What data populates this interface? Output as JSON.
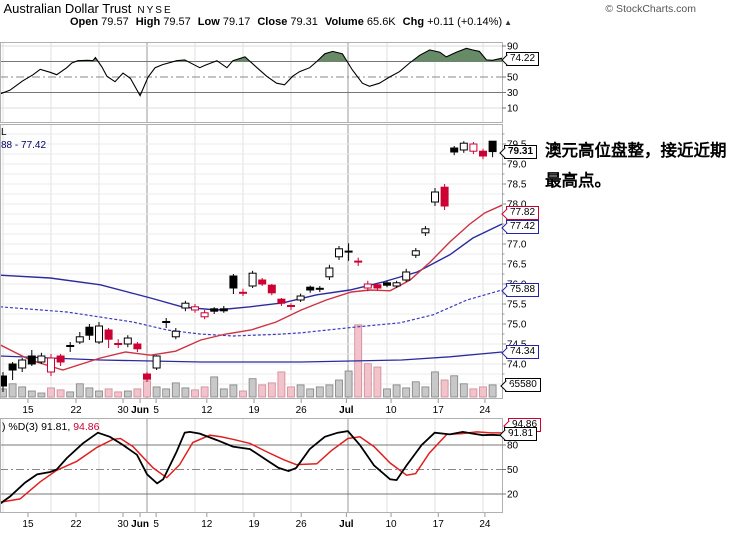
{
  "header": {
    "title": ": Australian Dollar Trust",
    "exchange": "NYSE",
    "copyright": "© StockCharts.com",
    "quote": [
      {
        "label": "Open",
        "value": "79.57"
      },
      {
        "label": "High",
        "value": "79.57"
      },
      {
        "label": "Low",
        "value": "79.17"
      },
      {
        "label": "Close",
        "value": "79.31"
      },
      {
        "label": "Volume",
        "value": "65.6K"
      },
      {
        "label": "Chg",
        "value": "+0.11 (+0.14%)"
      }
    ],
    "chg_arrow": "▲"
  },
  "annotation": {
    "text": "澳元高位盘整，接近近期最高点。"
  },
  "legends": {
    "main_line1": "L",
    "main_line2": "88 - 77.42",
    "stoch_prefix": ") %D(3) 91.81,",
    "stoch_d_value": "94.86"
  },
  "label_boxes": {
    "rsi": "74.22",
    "last_price": "79.31",
    "ma_fast": "77.82",
    "ma_slow": "77.42",
    "ma_dashed": "75.88",
    "ma_long": "74.34",
    "volume": "65580",
    "stoch_k": "91.81",
    "stoch_d": "94.86"
  },
  "colors": {
    "candle_up": "#000000",
    "candle_down": "#cc0033",
    "ma_red": "#cc3344",
    "ma_blue": "#2b2ba0",
    "ma_dashed": "#3b3bc0",
    "vol_gray": "#c8c8c8",
    "vol_gray_edge": "#808080",
    "vol_pink": "#f3c3cb",
    "vol_pink_edge": "#cc8896",
    "rsi_fill_high": "#678b67",
    "rsi_fill_low": "#9b6565",
    "stoch_k": "#000000",
    "stoch_d": "#e02020"
  },
  "chart_data": {
    "type": "candlestick+indicators",
    "x_labels": [
      {
        "t": "15",
        "f": 0.0557,
        "bold": false
      },
      {
        "t": "22",
        "f": 0.1514,
        "bold": false
      },
      {
        "t": "30",
        "f": 0.245,
        "bold": false
      },
      {
        "t": "Jun",
        "f": 0.279,
        "bold": true
      },
      {
        "t": "5",
        "f": 0.311,
        "bold": false
      },
      {
        "t": "12",
        "f": 0.412,
        "bold": false
      },
      {
        "t": "19",
        "f": 0.506,
        "bold": false
      },
      {
        "t": "26",
        "f": 0.6,
        "bold": false
      },
      {
        "t": "Jul",
        "f": 0.69,
        "bold": true
      },
      {
        "t": "10",
        "f": 0.779,
        "bold": false
      },
      {
        "t": "17",
        "f": 0.873,
        "bold": false
      },
      {
        "t": "24",
        "f": 0.966,
        "bold": false
      }
    ],
    "rsi": {
      "ylabels": [
        90,
        50,
        30,
        10
      ],
      "overbought": 70,
      "oversold": 30,
      "mid": 50,
      "last": 74.22,
      "points": [
        [
          0,
          28
        ],
        [
          0.02,
          33
        ],
        [
          0.045,
          45
        ],
        [
          0.066,
          53
        ],
        [
          0.08,
          60
        ],
        [
          0.1,
          56
        ],
        [
          0.113,
          53
        ],
        [
          0.133,
          62
        ],
        [
          0.143,
          68
        ],
        [
          0.155,
          71
        ],
        [
          0.175,
          71.5
        ],
        [
          0.185,
          71
        ],
        [
          0.19,
          75
        ],
        [
          0.203,
          63
        ],
        [
          0.213,
          51
        ],
        [
          0.229,
          44
        ],
        [
          0.245,
          55
        ],
        [
          0.26,
          48
        ],
        [
          0.279,
          26
        ],
        [
          0.295,
          50
        ],
        [
          0.309,
          62
        ],
        [
          0.324,
          66
        ],
        [
          0.352,
          71
        ],
        [
          0.368,
          72
        ],
        [
          0.398,
          62
        ],
        [
          0.408,
          65
        ],
        [
          0.432,
          71
        ],
        [
          0.452,
          62
        ],
        [
          0.464,
          71
        ],
        [
          0.488,
          76
        ],
        [
          0.512,
          62
        ],
        [
          0.531,
          51
        ],
        [
          0.551,
          42
        ],
        [
          0.567,
          40
        ],
        [
          0.583,
          51
        ],
        [
          0.597,
          57
        ],
        [
          0.617,
          62
        ],
        [
          0.631,
          70
        ],
        [
          0.647,
          80
        ],
        [
          0.663,
          83
        ],
        [
          0.682,
          80
        ],
        [
          0.702,
          59
        ],
        [
          0.722,
          42
        ],
        [
          0.736,
          38
        ],
        [
          0.756,
          42
        ],
        [
          0.776,
          50
        ],
        [
          0.796,
          57
        ],
        [
          0.816,
          68
        ],
        [
          0.836,
          78
        ],
        [
          0.856,
          85
        ],
        [
          0.876,
          82
        ],
        [
          0.889,
          76
        ],
        [
          0.909,
          82
        ],
        [
          0.929,
          87
        ],
        [
          0.941,
          85
        ],
        [
          0.955,
          83
        ],
        [
          0.969,
          72
        ],
        [
          0.981,
          71.5
        ],
        [
          1,
          74.22
        ]
      ]
    },
    "price": {
      "yticks": [
        79.5,
        79.0,
        78.5,
        78.0,
        77.0,
        76.5,
        76.0,
        75.5,
        75.0,
        74.5,
        74.0
      ],
      "last_close": 79.31,
      "last_volume": 65580,
      "candles": [
        [
          73.7,
          73.8,
          73.3,
          73.45,
          "b",
          "s",
          44
        ],
        [
          74.0,
          74.05,
          73.6,
          73.85,
          "b",
          "s",
          72
        ],
        [
          73.9,
          74.15,
          73.8,
          74.1,
          "b",
          "h",
          55
        ],
        [
          74.2,
          74.35,
          73.95,
          74.0,
          "b",
          "s",
          33
        ],
        [
          74.05,
          74.28,
          74.0,
          74.2,
          "b",
          "h",
          22
        ],
        [
          73.8,
          74.25,
          73.7,
          74.15,
          "r",
          "h",
          50
        ],
        [
          74.2,
          74.25,
          73.95,
          74.05,
          "r",
          "s",
          39
        ],
        [
          74.44,
          74.55,
          74.3,
          74.45,
          "b",
          "s",
          28
        ],
        [
          74.55,
          74.8,
          74.5,
          74.68,
          "b",
          "h",
          72
        ],
        [
          74.92,
          75.0,
          74.6,
          74.72,
          "b",
          "s",
          50
        ],
        [
          74.55,
          75.05,
          74.5,
          74.95,
          "b",
          "h",
          33
        ],
        [
          74.85,
          74.9,
          74.4,
          74.62,
          "r",
          "s",
          44
        ],
        [
          74.52,
          74.62,
          74.4,
          74.5,
          "r",
          "s",
          28
        ],
        [
          74.5,
          74.72,
          74.42,
          74.65,
          "b",
          "h",
          33
        ],
        [
          74.5,
          74.55,
          74.3,
          74.38,
          "r",
          "s",
          44
        ],
        [
          73.75,
          73.8,
          73.55,
          73.62,
          "r",
          "s",
          88
        ],
        [
          73.9,
          74.22,
          73.85,
          74.2,
          "b",
          "h",
          55
        ],
        [
          75.04,
          75.15,
          74.9,
          75.05,
          "b",
          "s",
          44
        ],
        [
          74.68,
          74.9,
          74.62,
          74.82,
          "b",
          "h",
          77
        ],
        [
          75.4,
          75.58,
          75.32,
          75.52,
          "b",
          "h",
          50
        ],
        [
          75.35,
          75.5,
          75.28,
          75.43,
          "r",
          "h",
          39
        ],
        [
          75.18,
          75.35,
          75.12,
          75.28,
          "r",
          "h",
          55
        ],
        [
          75.38,
          75.42,
          75.25,
          75.32,
          "b",
          "s",
          110
        ],
        [
          75.38,
          75.45,
          75.28,
          75.33,
          "b",
          "s",
          44
        ],
        [
          76.2,
          76.25,
          75.75,
          75.9,
          "b",
          "s",
          66
        ],
        [
          75.8,
          75.88,
          75.7,
          75.78,
          "r",
          "s",
          33
        ],
        [
          75.95,
          76.33,
          75.9,
          76.27,
          "b",
          "h",
          100
        ],
        [
          76.1,
          76.15,
          75.95,
          76.0,
          "r",
          "s",
          66
        ],
        [
          75.97,
          76.0,
          75.72,
          75.78,
          "r",
          "s",
          77
        ],
        [
          75.62,
          75.65,
          75.45,
          75.52,
          "r",
          "s",
          137
        ],
        [
          75.45,
          75.52,
          75.35,
          75.45,
          "r",
          "s",
          55
        ],
        [
          75.6,
          75.76,
          75.55,
          75.7,
          "b",
          "h",
          66
        ],
        [
          75.92,
          75.96,
          75.78,
          75.85,
          "b",
          "s",
          44
        ],
        [
          75.88,
          75.95,
          75.8,
          75.88,
          "b",
          "s",
          55
        ],
        [
          76.18,
          76.48,
          76.1,
          76.4,
          "b",
          "h",
          66
        ],
        [
          76.68,
          76.95,
          76.6,
          76.88,
          "b",
          "h",
          93
        ],
        [
          76.8,
          77.02,
          76.58,
          76.81,
          "b",
          "s",
          142
        ],
        [
          76.55,
          76.66,
          76.45,
          76.56,
          "r",
          "s",
          394
        ],
        [
          75.9,
          76.08,
          75.82,
          76.0,
          "r",
          "h",
          182
        ],
        [
          75.98,
          76.02,
          75.85,
          75.9,
          "r",
          "s",
          164
        ],
        [
          76.03,
          76.08,
          75.92,
          75.97,
          "b",
          "s",
          44
        ],
        [
          75.95,
          76.08,
          75.9,
          76.03,
          "b",
          "h",
          66
        ],
        [
          76.1,
          76.38,
          76.05,
          76.3,
          "b",
          "h",
          50
        ],
        [
          76.72,
          76.9,
          76.65,
          76.83,
          "b",
          "h",
          83
        ],
        [
          77.28,
          77.45,
          77.2,
          77.38,
          "b",
          "h",
          55
        ],
        [
          78.05,
          78.4,
          77.95,
          78.3,
          "b",
          "h",
          137
        ],
        [
          78.42,
          78.5,
          77.85,
          77.95,
          "r",
          "s",
          93
        ],
        [
          79.4,
          79.45,
          79.22,
          79.3,
          "b",
          "s",
          116
        ],
        [
          79.35,
          79.57,
          79.28,
          79.52,
          "b",
          "h",
          72
        ],
        [
          79.32,
          79.55,
          79.25,
          79.5,
          "r",
          "h",
          44
        ],
        [
          79.32,
          79.38,
          79.12,
          79.2,
          "r",
          "s",
          55
        ],
        [
          79.57,
          79.57,
          79.17,
          79.31,
          "b",
          "s",
          66
        ]
      ],
      "ma_red": [
        [
          0,
          74.48
        ],
        [
          0.06,
          74.1
        ],
        [
          0.125,
          73.85
        ],
        [
          0.2,
          74.15
        ],
        [
          0.25,
          74.3
        ],
        [
          0.3,
          74.22
        ],
        [
          0.35,
          74.32
        ],
        [
          0.4,
          74.6
        ],
        [
          0.45,
          74.75
        ],
        [
          0.5,
          74.85
        ],
        [
          0.55,
          75.05
        ],
        [
          0.6,
          75.35
        ],
        [
          0.65,
          75.6
        ],
        [
          0.7,
          75.8
        ],
        [
          0.737,
          75.85
        ],
        [
          0.777,
          75.83
        ],
        [
          0.817,
          76.1
        ],
        [
          0.857,
          76.55
        ],
        [
          0.896,
          77.05
        ],
        [
          0.936,
          77.5
        ],
        [
          0.966,
          77.78
        ],
        [
          1,
          77.97
        ]
      ],
      "ma_blue": [
        [
          0,
          76.22
        ],
        [
          0.1,
          76.15
        ],
        [
          0.2,
          75.98
        ],
        [
          0.3,
          75.65
        ],
        [
          0.365,
          75.42
        ],
        [
          0.432,
          75.35
        ],
        [
          0.498,
          75.43
        ],
        [
          0.564,
          75.53
        ],
        [
          0.631,
          75.73
        ],
        [
          0.697,
          75.85
        ],
        [
          0.763,
          76.05
        ],
        [
          0.831,
          76.3
        ],
        [
          0.896,
          76.73
        ],
        [
          0.942,
          77.15
        ],
        [
          1,
          77.5
        ]
      ],
      "ma_dashed": [
        [
          0,
          75.43
        ],
        [
          0.133,
          75.3
        ],
        [
          0.265,
          75.05
        ],
        [
          0.333,
          74.85
        ],
        [
          0.398,
          74.75
        ],
        [
          0.464,
          74.7
        ],
        [
          0.55,
          74.74
        ],
        [
          0.6,
          74.78
        ],
        [
          0.713,
          74.93
        ],
        [
          0.797,
          75.03
        ],
        [
          0.863,
          75.23
        ],
        [
          0.93,
          75.6
        ],
        [
          1,
          75.85
        ]
      ],
      "ma_long": [
        [
          0,
          74.2
        ],
        [
          0.2,
          74.1
        ],
        [
          0.4,
          74.05
        ],
        [
          0.6,
          74.05
        ],
        [
          0.8,
          74.1
        ],
        [
          0.896,
          74.18
        ],
        [
          1,
          74.3
        ]
      ]
    },
    "stoch": {
      "ylabels": [
        80,
        50,
        20
      ],
      "k_last": 91.81,
      "d_last": 94.86,
      "k": [
        [
          0,
          8
        ],
        [
          0.02,
          17
        ],
        [
          0.05,
          34
        ],
        [
          0.074,
          44
        ],
        [
          0.1,
          47
        ],
        [
          0.113,
          50
        ],
        [
          0.133,
          64
        ],
        [
          0.165,
          82
        ],
        [
          0.195,
          95
        ],
        [
          0.219,
          90
        ],
        [
          0.245,
          80
        ],
        [
          0.273,
          68
        ],
        [
          0.293,
          44
        ],
        [
          0.313,
          33
        ],
        [
          0.325,
          38
        ],
        [
          0.352,
          72
        ],
        [
          0.368,
          95
        ],
        [
          0.378,
          96
        ],
        [
          0.398,
          94
        ],
        [
          0.432,
          86
        ],
        [
          0.464,
          78
        ],
        [
          0.498,
          75
        ],
        [
          0.53,
          62
        ],
        [
          0.555,
          52
        ],
        [
          0.575,
          48
        ],
        [
          0.59,
          52
        ],
        [
          0.617,
          75
        ],
        [
          0.647,
          90
        ],
        [
          0.673,
          95
        ],
        [
          0.693,
          97
        ],
        [
          0.717,
          80
        ],
        [
          0.745,
          55
        ],
        [
          0.777,
          38
        ],
        [
          0.79,
          37
        ],
        [
          0.81,
          55
        ],
        [
          0.84,
          80
        ],
        [
          0.866,
          95
        ],
        [
          0.896,
          93
        ],
        [
          0.922,
          96
        ],
        [
          0.942,
          94
        ],
        [
          0.962,
          92
        ],
        [
          0.98,
          92.5
        ],
        [
          1,
          91.81
        ]
      ],
      "d": [
        [
          0,
          10
        ],
        [
          0.04,
          14
        ],
        [
          0.08,
          35
        ],
        [
          0.113,
          49
        ],
        [
          0.153,
          60
        ],
        [
          0.193,
          77
        ],
        [
          0.225,
          87
        ],
        [
          0.24,
          88
        ],
        [
          0.265,
          78
        ],
        [
          0.305,
          52
        ],
        [
          0.332,
          40
        ],
        [
          0.358,
          56
        ],
        [
          0.384,
          83
        ],
        [
          0.418,
          92
        ],
        [
          0.44,
          90
        ],
        [
          0.464,
          87
        ],
        [
          0.498,
          82
        ],
        [
          0.53,
          72
        ],
        [
          0.565,
          62
        ],
        [
          0.59,
          56
        ],
        [
          0.631,
          57
        ],
        [
          0.66,
          73
        ],
        [
          0.693,
          88
        ],
        [
          0.717,
          90
        ],
        [
          0.745,
          78
        ],
        [
          0.777,
          58
        ],
        [
          0.81,
          43
        ],
        [
          0.828,
          45
        ],
        [
          0.855,
          70
        ],
        [
          0.89,
          93
        ],
        [
          0.92,
          94
        ],
        [
          0.95,
          96
        ],
        [
          0.975,
          95
        ],
        [
          1,
          94.86
        ]
      ]
    }
  }
}
